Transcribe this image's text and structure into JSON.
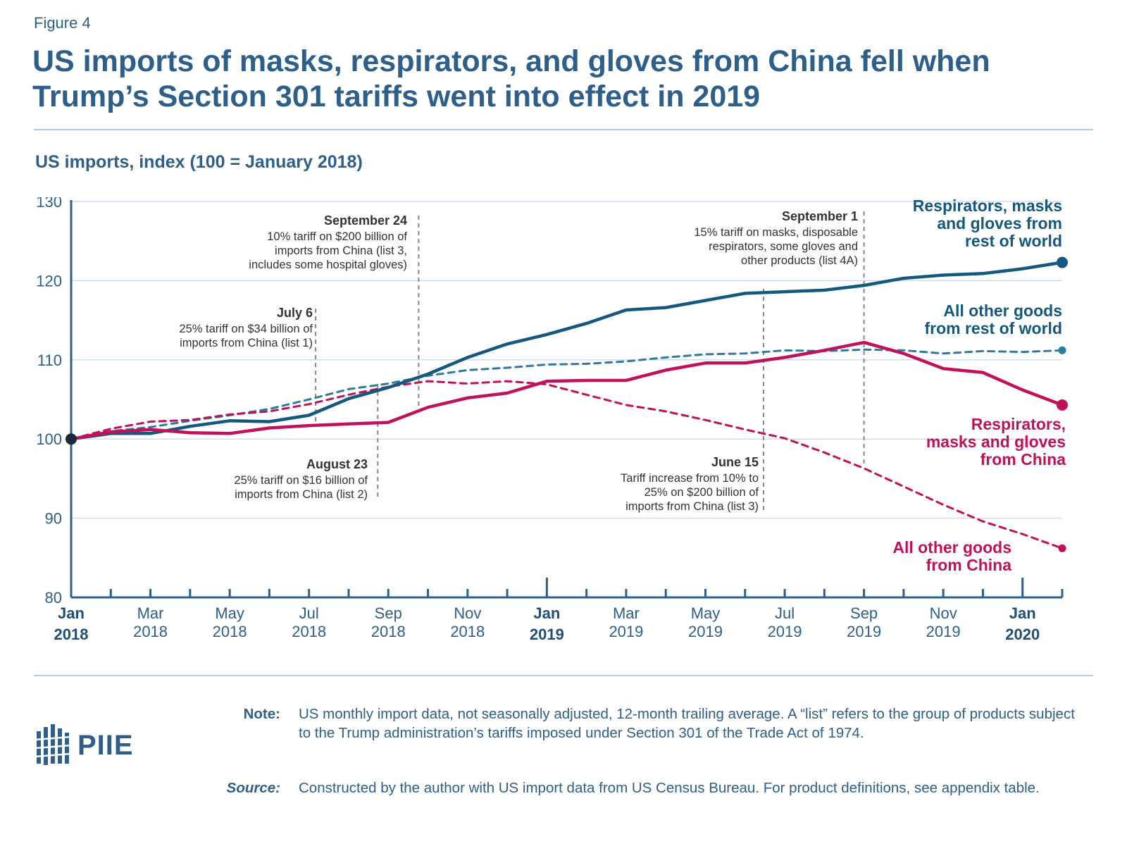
{
  "figure_label": "Figure 4",
  "title": "US imports of masks, respirators, and gloves from China fell when Trump’s Section 301 tariffs went into effect in 2019",
  "logo_text": "PIIE",
  "note": {
    "label": "Note:",
    "text": "US monthly import data, not seasonally adjusted, 12-month trailing average. A “list” refers to the group of products subject to the Trump administration’s tariffs imposed under Section 301 of the Trade Act of 1974."
  },
  "source": {
    "label": "Source:",
    "text": "Constructed by the author with US import data from US Census Bureau. For product definitions, see appendix table."
  },
  "colors": {
    "blue": "#14587f",
    "dashed_blue": "#2e7b9e",
    "crimson": "#c0115a",
    "text_blue": "#2d5f8a",
    "grid": "#cfdcea",
    "annotation_line": "#8a8a8a"
  },
  "chart_data": {
    "type": "line",
    "ylabel": "US imports, index (100 = January 2018)",
    "ylim": [
      80,
      130
    ],
    "yticks": [
      80,
      90,
      100,
      110,
      120,
      130
    ],
    "grid": true,
    "x": [
      "2018-01",
      "2018-02",
      "2018-03",
      "2018-04",
      "2018-05",
      "2018-06",
      "2018-07",
      "2018-08",
      "2018-09",
      "2018-10",
      "2018-11",
      "2018-12",
      "2019-01",
      "2019-02",
      "2019-03",
      "2019-04",
      "2019-05",
      "2019-06",
      "2019-07",
      "2019-08",
      "2019-09",
      "2019-10",
      "2019-11",
      "2019-12",
      "2020-01",
      "2020-02"
    ],
    "xtick_labels": [
      {
        "x": "2018-01",
        "month": "Jan",
        "year": "2018",
        "bold": true
      },
      {
        "x": "2018-03",
        "month": "Mar",
        "year": "2018"
      },
      {
        "x": "2018-05",
        "month": "May",
        "year": "2018"
      },
      {
        "x": "2018-07",
        "month": "Jul",
        "year": "2018"
      },
      {
        "x": "2018-09",
        "month": "Sep",
        "year": "2018"
      },
      {
        "x": "2018-11",
        "month": "Nov",
        "year": "2018"
      },
      {
        "x": "2019-01",
        "month": "Jan",
        "year": "2019",
        "bold": true
      },
      {
        "x": "2019-03",
        "month": "Mar",
        "year": "2019"
      },
      {
        "x": "2019-05",
        "month": "May",
        "year": "2019"
      },
      {
        "x": "2019-07",
        "month": "Jul",
        "year": "2019"
      },
      {
        "x": "2019-09",
        "month": "Sep",
        "year": "2019"
      },
      {
        "x": "2019-11",
        "month": "Nov",
        "year": "2019"
      },
      {
        "x": "2020-01",
        "month": "Jan",
        "year": "2020",
        "bold": true
      }
    ],
    "series": [
      {
        "name": "Respirators, masks and gloves from rest of world",
        "style": "solid",
        "color": "#14587f",
        "values": [
          100,
          100.7,
          100.7,
          101.6,
          102.3,
          102.2,
          103.0,
          105.1,
          106.5,
          108.2,
          110.3,
          112.0,
          113.2,
          114.6,
          116.3,
          116.6,
          117.5,
          118.4,
          118.6,
          118.8,
          119.4,
          120.3,
          120.7,
          120.9,
          121.5,
          122.3
        ]
      },
      {
        "name": "All other goods from rest of world",
        "style": "dashed",
        "color": "#2e7b9e",
        "values": [
          100,
          101.0,
          101.5,
          102.3,
          103.0,
          103.8,
          105.0,
          106.3,
          107.0,
          108.0,
          108.7,
          109.0,
          109.4,
          109.5,
          109.8,
          110.3,
          110.7,
          110.8,
          111.2,
          111.1,
          111.3,
          111.2,
          110.8,
          111.1,
          111.0,
          111.2
        ]
      },
      {
        "name": "Respirators, masks and gloves from China",
        "style": "solid",
        "color": "#c0115a",
        "values": [
          100,
          100.9,
          101.2,
          100.8,
          100.7,
          101.4,
          101.7,
          101.9,
          102.1,
          104.0,
          105.2,
          105.8,
          107.3,
          107.4,
          107.4,
          108.7,
          109.6,
          109.6,
          110.3,
          111.2,
          112.2,
          110.8,
          108.9,
          108.4,
          106.2,
          104.3
        ]
      },
      {
        "name": "All other goods from China",
        "style": "dashed",
        "color": "#c0115a",
        "values": [
          100,
          101.3,
          102.2,
          102.4,
          103.1,
          103.5,
          104.4,
          105.6,
          106.6,
          107.3,
          107.0,
          107.3,
          106.9,
          105.6,
          104.3,
          103.5,
          102.4,
          101.2,
          100.1,
          98.3,
          96.3,
          94.0,
          91.7,
          89.6,
          88.0,
          86.2
        ]
      }
    ],
    "series_labels": [
      {
        "series": 0,
        "lines": [
          "Respirators, masks",
          "and gloves from",
          "rest of world"
        ]
      },
      {
        "series": 1,
        "lines": [
          "All other goods",
          "from rest of world"
        ]
      },
      {
        "series": 2,
        "lines": [
          "Respirators,",
          "masks and gloves",
          "from China"
        ]
      },
      {
        "series": 3,
        "lines": [
          "All other goods",
          "from China"
        ]
      }
    ],
    "annotations": [
      {
        "date": "2018-07-06",
        "heading": "July 6",
        "lines": [
          "25% tariff on $34 billion of",
          "imports from China  (list 1)"
        ],
        "position": "above"
      },
      {
        "date": "2018-08-23",
        "heading": "August 23",
        "lines": [
          "25% tariff on $16 billion of",
          "imports from China  (list 2)"
        ],
        "position": "below"
      },
      {
        "date": "2018-09-24",
        "heading": "September 24",
        "lines": [
          "10% tariff on $200 billion of",
          "imports from China (list 3,",
          "includes some hospital gloves)"
        ],
        "position": "above"
      },
      {
        "date": "2019-06-15",
        "heading": "June 15",
        "lines": [
          "Tariff increase from 10% to",
          "25% on $200 billion of",
          "imports from China (list 3)"
        ],
        "position": "below"
      },
      {
        "date": "2019-09-01",
        "heading": "September 1",
        "lines": [
          "15% tariff on masks, disposable",
          "respirators, some gloves and",
          "other products (list 4A)"
        ],
        "position": "above"
      }
    ]
  }
}
